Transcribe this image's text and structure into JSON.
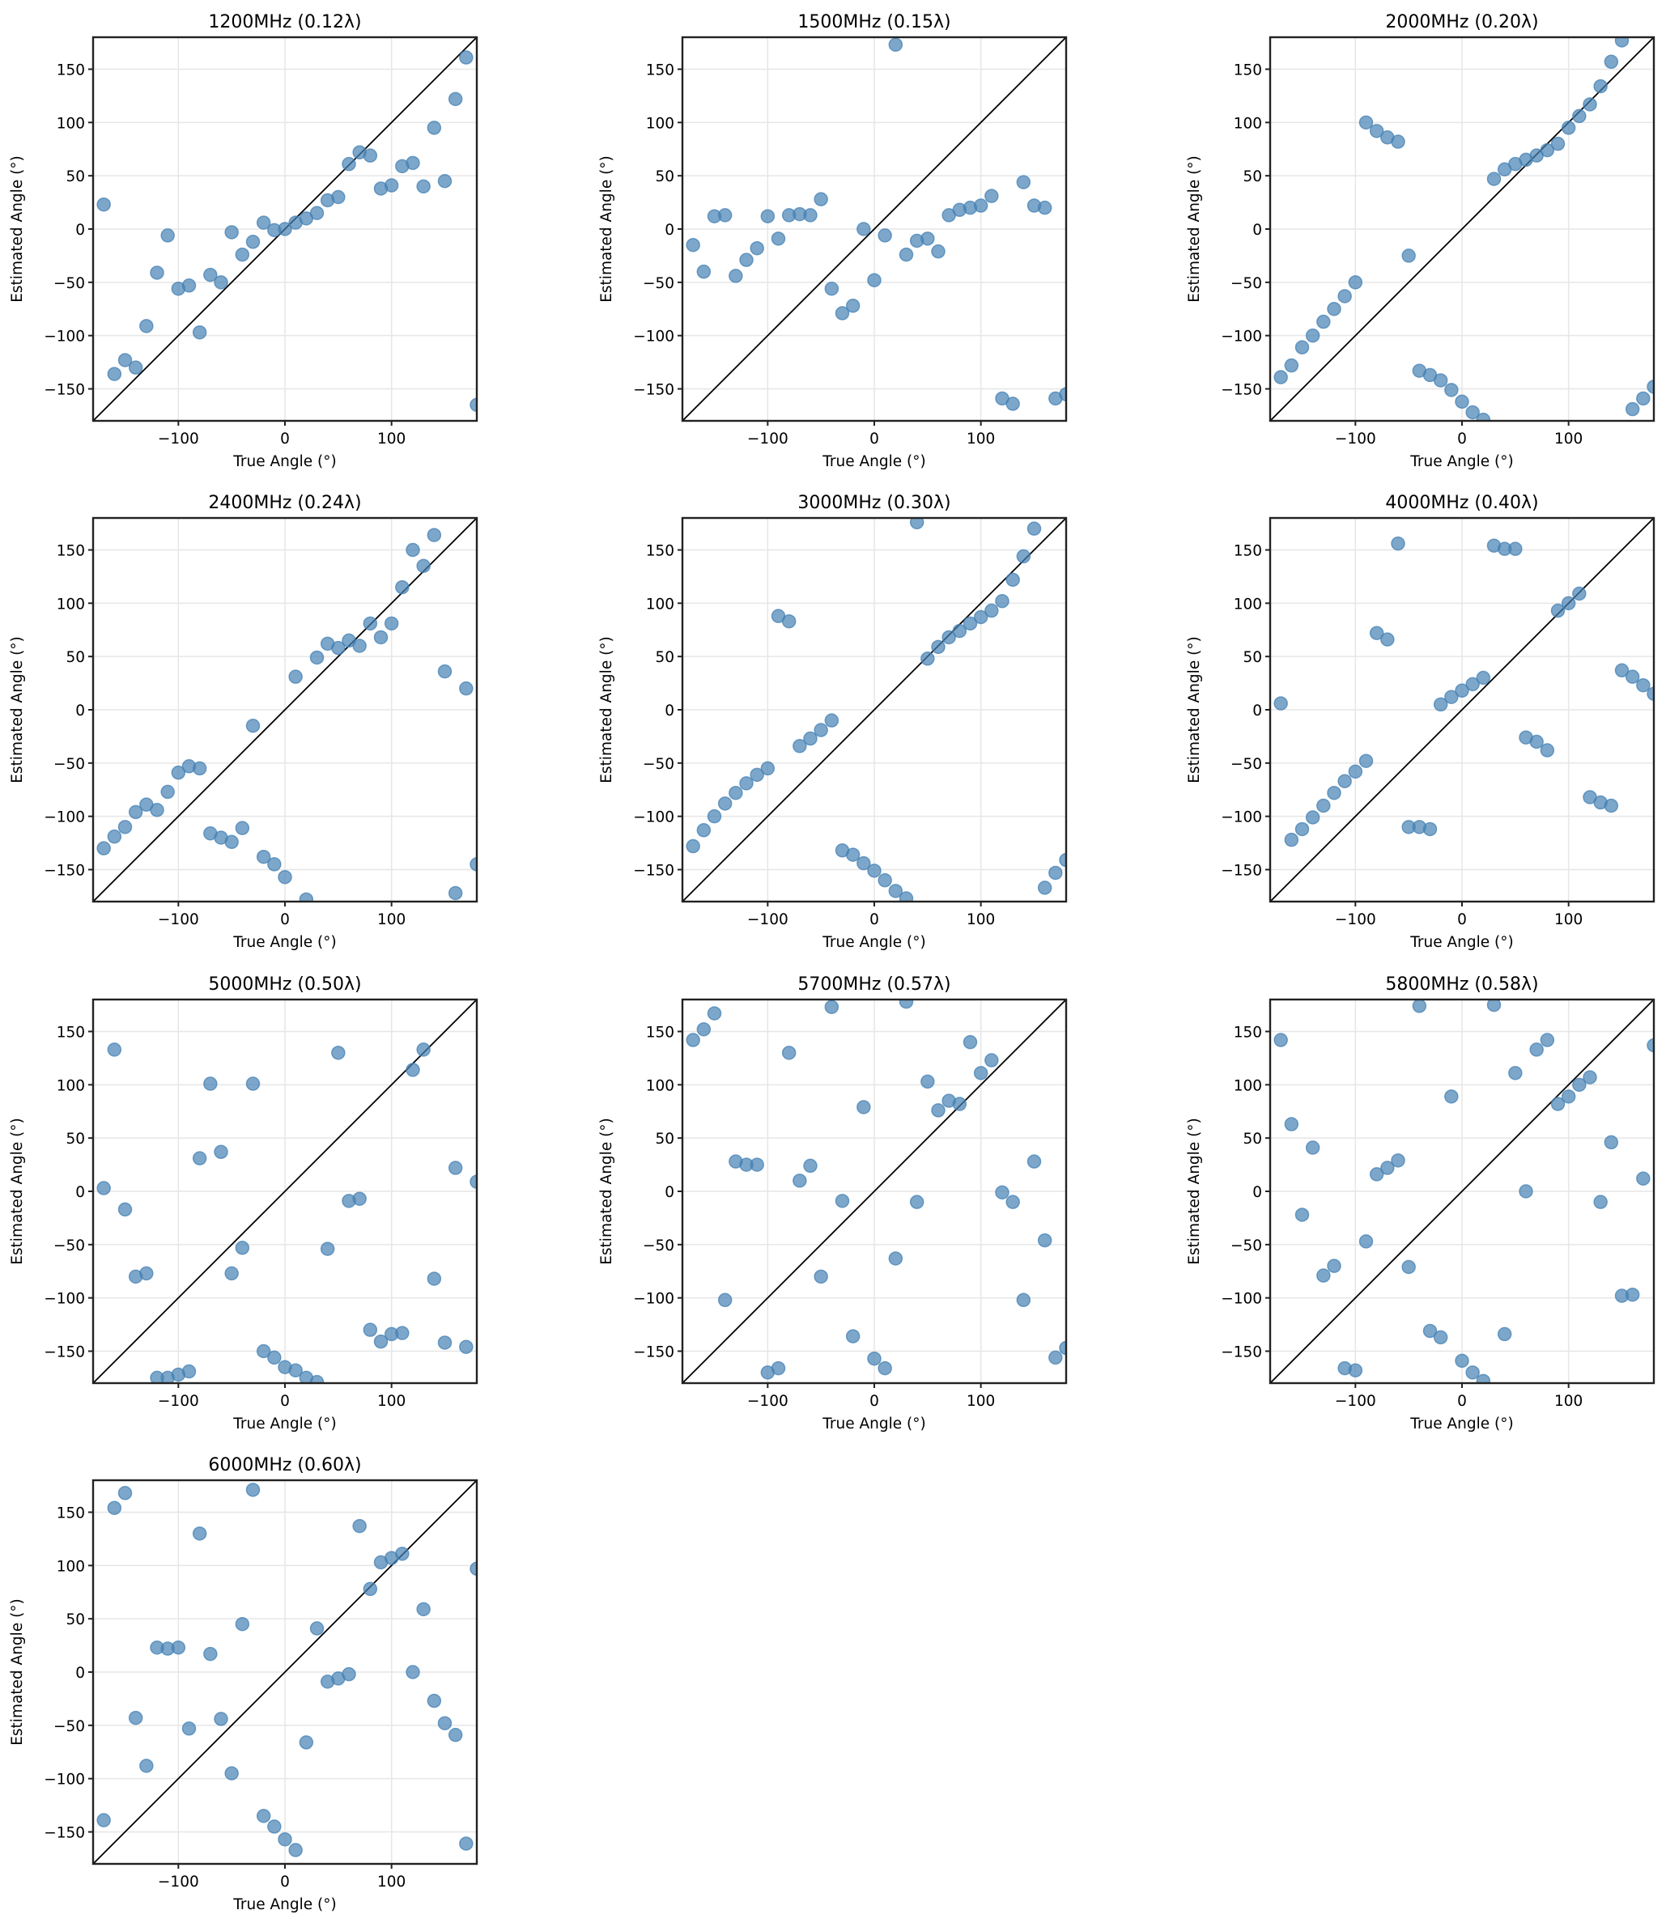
{
  "chart_data": [
    {
      "type": "scatter",
      "title": "1200MHz (0.12λ)",
      "xlabel": "True Angle (°)",
      "ylabel": "Estimated Angle (°)",
      "xlim": [
        -180,
        180
      ],
      "ylim": [
        -180,
        180
      ],
      "xticks": [
        -100,
        0,
        100
      ],
      "yticks": [
        -150,
        -100,
        -50,
        0,
        50,
        100,
        150
      ],
      "grid": true,
      "reference_line": "y = x",
      "x": [
        -170,
        -160,
        -150,
        -140,
        -130,
        -120,
        -110,
        -100,
        -90,
        -80,
        -70,
        -60,
        -50,
        -40,
        -30,
        -20,
        -10,
        0,
        10,
        20,
        30,
        40,
        50,
        60,
        70,
        80,
        90,
        100,
        110,
        120,
        130,
        140,
        150,
        160,
        170,
        180
      ],
      "y": [
        23,
        -136,
        -123,
        -130,
        -91,
        -41,
        -6,
        -56,
        -53,
        -97,
        -43,
        -50,
        -3,
        -24,
        -12,
        6,
        -1,
        0,
        6,
        10,
        15,
        27,
        30,
        61,
        72,
        69,
        38,
        41,
        59,
        62,
        40,
        95,
        45,
        122,
        161,
        -165
      ]
    },
    {
      "type": "scatter",
      "title": "1500MHz (0.15λ)",
      "xlabel": "True Angle (°)",
      "ylabel": "Estimated Angle (°)",
      "xlim": [
        -180,
        180
      ],
      "ylim": [
        -180,
        180
      ],
      "xticks": [
        -100,
        0,
        100
      ],
      "yticks": [
        -150,
        -100,
        -50,
        0,
        50,
        100,
        150
      ],
      "grid": true,
      "reference_line": "y = x",
      "x": [
        -170,
        -160,
        -150,
        -140,
        -130,
        -120,
        -110,
        -100,
        -90,
        -80,
        -70,
        -60,
        -50,
        -40,
        -30,
        -20,
        -10,
        0,
        10,
        20,
        30,
        40,
        50,
        60,
        70,
        80,
        90,
        100,
        110,
        120,
        130,
        140,
        150,
        160,
        170,
        180
      ],
      "y": [
        -15,
        -40,
        12,
        13,
        -44,
        -29,
        -18,
        12,
        -9,
        13,
        14,
        13,
        28,
        -56,
        -79,
        -72,
        0,
        -48,
        -6,
        173,
        -24,
        -11,
        -9,
        -21,
        13,
        18,
        20,
        22,
        31,
        -159,
        -164,
        44,
        22,
        20,
        -159,
        -155
      ]
    },
    {
      "type": "scatter",
      "title": "2000MHz (0.20λ)",
      "xlabel": "True Angle (°)",
      "ylabel": "Estimated Angle (°)",
      "xlim": [
        -180,
        180
      ],
      "ylim": [
        -180,
        180
      ],
      "xticks": [
        -100,
        0,
        100
      ],
      "yticks": [
        -150,
        -100,
        -50,
        0,
        50,
        100,
        150
      ],
      "grid": true,
      "reference_line": "y = x",
      "x": [
        -170,
        -160,
        -150,
        -140,
        -130,
        -120,
        -110,
        -100,
        -90,
        -80,
        -70,
        -60,
        -50,
        -40,
        -30,
        -20,
        -10,
        0,
        10,
        20,
        30,
        40,
        50,
        60,
        70,
        80,
        90,
        100,
        110,
        120,
        130,
        140,
        150,
        160,
        170,
        180
      ],
      "y": [
        -139,
        -128,
        -111,
        -100,
        -87,
        -75,
        -63,
        -50,
        100,
        92,
        86,
        82,
        -25,
        -133,
        -137,
        -142,
        -151,
        -162,
        -172,
        -179,
        47,
        56,
        61,
        65,
        69,
        74,
        80,
        95,
        106,
        117,
        134,
        157,
        177,
        -169,
        -159,
        -148
      ]
    },
    {
      "type": "scatter",
      "title": "2400MHz (0.24λ)",
      "xlabel": "True Angle (°)",
      "ylabel": "Estimated Angle (°)",
      "xlim": [
        -180,
        180
      ],
      "ylim": [
        -180,
        180
      ],
      "xticks": [
        -100,
        0,
        100
      ],
      "yticks": [
        -150,
        -100,
        -50,
        0,
        50,
        100,
        150
      ],
      "grid": true,
      "reference_line": "y = x",
      "x": [
        -170,
        -160,
        -150,
        -140,
        -130,
        -120,
        -110,
        -100,
        -90,
        -80,
        -70,
        -60,
        -50,
        -40,
        -30,
        -20,
        -10,
        0,
        10,
        20,
        30,
        40,
        50,
        60,
        70,
        80,
        90,
        100,
        110,
        120,
        130,
        140,
        150,
        160,
        170,
        180
      ],
      "y": [
        -130,
        -119,
        -110,
        -96,
        -89,
        -94,
        -77,
        -59,
        -53,
        -55,
        -116,
        -120,
        -124,
        -111,
        -15,
        -138,
        -145,
        -157,
        31,
        -178,
        49,
        62,
        58,
        65,
        60,
        81,
        68,
        81,
        115,
        150,
        135,
        164,
        36,
        -172,
        20,
        -145
      ]
    },
    {
      "type": "scatter",
      "title": "3000MHz (0.30λ)",
      "xlabel": "True Angle (°)",
      "ylabel": "Estimated Angle (°)",
      "xlim": [
        -180,
        180
      ],
      "ylim": [
        -180,
        180
      ],
      "xticks": [
        -100,
        0,
        100
      ],
      "yticks": [
        -150,
        -100,
        -50,
        0,
        50,
        100,
        150
      ],
      "grid": true,
      "reference_line": "y = x",
      "x": [
        -170,
        -160,
        -150,
        -140,
        -130,
        -120,
        -110,
        -100,
        -90,
        -80,
        -70,
        -60,
        -50,
        -40,
        -30,
        -20,
        -10,
        0,
        10,
        20,
        30,
        40,
        50,
        60,
        70,
        80,
        90,
        100,
        110,
        120,
        130,
        140,
        150,
        160,
        170,
        180
      ],
      "y": [
        -128,
        -113,
        -100,
        -88,
        -78,
        -69,
        -61,
        -55,
        88,
        83,
        -34,
        -27,
        -19,
        -10,
        -132,
        -136,
        -144,
        -151,
        -160,
        -170,
        -177,
        176,
        48,
        59,
        68,
        74,
        81,
        87,
        93,
        102,
        122,
        144,
        170,
        -167,
        -153,
        -141
      ]
    },
    {
      "type": "scatter",
      "title": "4000MHz (0.40λ)",
      "xlabel": "True Angle (°)",
      "ylabel": "Estimated Angle (°)",
      "xlim": [
        -180,
        180
      ],
      "ylim": [
        -180,
        180
      ],
      "xticks": [
        -100,
        0,
        100
      ],
      "yticks": [
        -150,
        -100,
        -50,
        0,
        50,
        100,
        150
      ],
      "grid": true,
      "reference_line": "y = x",
      "x": [
        -170,
        -160,
        -150,
        -140,
        -130,
        -120,
        -110,
        -100,
        -90,
        -80,
        -70,
        -60,
        -50,
        -40,
        -30,
        -20,
        -10,
        0,
        10,
        20,
        30,
        40,
        50,
        60,
        70,
        80,
        90,
        100,
        110,
        120,
        130,
        140,
        150,
        160,
        170,
        180
      ],
      "y": [
        6,
        -122,
        -112,
        -101,
        -90,
        -78,
        -67,
        -58,
        -48,
        72,
        66,
        156,
        -110,
        -110,
        -112,
        5,
        12,
        18,
        24,
        30,
        154,
        151,
        151,
        -26,
        -30,
        -38,
        93,
        100,
        109,
        -82,
        -87,
        -90,
        37,
        31,
        23,
        15
      ]
    },
    {
      "type": "scatter",
      "title": "5000MHz (0.50λ)",
      "xlabel": "True Angle (°)",
      "ylabel": "Estimated Angle (°)",
      "xlim": [
        -180,
        180
      ],
      "ylim": [
        -180,
        180
      ],
      "xticks": [
        -100,
        0,
        100
      ],
      "yticks": [
        -150,
        -100,
        -50,
        0,
        50,
        100,
        150
      ],
      "grid": true,
      "reference_line": "y = x",
      "x": [
        -170,
        -160,
        -150,
        -140,
        -130,
        -120,
        -110,
        -100,
        -90,
        -80,
        -70,
        -60,
        -50,
        -40,
        -30,
        -20,
        -10,
        0,
        10,
        20,
        30,
        40,
        50,
        60,
        70,
        80,
        90,
        100,
        110,
        120,
        130,
        140,
        150,
        160,
        170,
        180
      ],
      "y": [
        3,
        133,
        -17,
        -80,
        -77,
        -175,
        -175,
        -172,
        -169,
        31,
        101,
        37,
        -77,
        -53,
        101,
        -150,
        -156,
        -165,
        -168,
        -175,
        -179,
        -54,
        130,
        -9,
        -7,
        -130,
        -141,
        -134,
        -133,
        114,
        133,
        -82,
        -142,
        22,
        -146,
        9
      ]
    },
    {
      "type": "scatter",
      "title": "5700MHz (0.57λ)",
      "xlabel": "True Angle (°)",
      "ylabel": "Estimated Angle (°)",
      "xlim": [
        -180,
        180
      ],
      "ylim": [
        -180,
        180
      ],
      "xticks": [
        -100,
        0,
        100
      ],
      "yticks": [
        -150,
        -100,
        -50,
        0,
        50,
        100,
        150
      ],
      "grid": true,
      "reference_line": "y = x",
      "x": [
        -170,
        -160,
        -150,
        -140,
        -130,
        -120,
        -110,
        -100,
        -90,
        -80,
        -70,
        -60,
        -50,
        -40,
        -30,
        -20,
        -10,
        0,
        10,
        20,
        30,
        40,
        50,
        60,
        70,
        80,
        90,
        100,
        110,
        120,
        130,
        140,
        150,
        160,
        170,
        180
      ],
      "y": [
        142,
        152,
        167,
        -102,
        28,
        25,
        25,
        -170,
        -166,
        130,
        10,
        24,
        -80,
        173,
        -9,
        -136,
        79,
        -157,
        -166,
        -63,
        178,
        -10,
        103,
        76,
        85,
        82,
        140,
        111,
        123,
        -1,
        -10,
        -102,
        28,
        -46,
        -156,
        -147
      ]
    },
    {
      "type": "scatter",
      "title": "5800MHz (0.58λ)",
      "xlabel": "True Angle (°)",
      "ylabel": "Estimated Angle (°)",
      "xlim": [
        -180,
        180
      ],
      "ylim": [
        -180,
        180
      ],
      "xticks": [
        -100,
        0,
        100
      ],
      "yticks": [
        -150,
        -100,
        -50,
        0,
        50,
        100,
        150
      ],
      "grid": true,
      "reference_line": "y = x",
      "x": [
        -170,
        -160,
        -150,
        -140,
        -130,
        -120,
        -110,
        -100,
        -90,
        -80,
        -70,
        -60,
        -50,
        -40,
        -30,
        -20,
        -10,
        0,
        10,
        20,
        30,
        40,
        50,
        60,
        70,
        80,
        90,
        100,
        110,
        120,
        130,
        140,
        150,
        160,
        170,
        180
      ],
      "y": [
        142,
        63,
        -22,
        41,
        -79,
        -70,
        -166,
        -168,
        -47,
        16,
        22,
        29,
        -71,
        174,
        -131,
        -137,
        89,
        -159,
        -170,
        -178,
        175,
        -134,
        111,
        0,
        133,
        142,
        82,
        89,
        100,
        107,
        -10,
        46,
        -98,
        -97,
        12,
        137
      ]
    },
    {
      "type": "scatter",
      "title": "6000MHz (0.60λ)",
      "xlabel": "True Angle (°)",
      "ylabel": "Estimated Angle (°)",
      "xlim": [
        -180,
        180
      ],
      "ylim": [
        -180,
        180
      ],
      "xticks": [
        -100,
        0,
        100
      ],
      "yticks": [
        -150,
        -100,
        -50,
        0,
        50,
        100,
        150
      ],
      "grid": true,
      "reference_line": "y = x",
      "x": [
        -170,
        -160,
        -150,
        -140,
        -130,
        -120,
        -110,
        -100,
        -90,
        -80,
        -70,
        -60,
        -50,
        -40,
        -30,
        -20,
        -10,
        0,
        10,
        20,
        30,
        40,
        50,
        60,
        70,
        80,
        90,
        100,
        110,
        120,
        130,
        140,
        150,
        160,
        170,
        180
      ],
      "y": [
        -139,
        154,
        168,
        -43,
        -88,
        23,
        22,
        23,
        -53,
        130,
        17,
        -44,
        -95,
        45,
        171,
        -135,
        -145,
        -157,
        -167,
        -66,
        41,
        -9,
        -6,
        -2,
        137,
        78,
        103,
        107,
        111,
        0,
        59,
        -27,
        -48,
        -59,
        -161,
        97
      ]
    }
  ],
  "tick_format": {
    "minus_sign": "−"
  },
  "colors": {
    "marker": "#4682b4",
    "reference_line": "#000000",
    "grid": "#e6e6e6"
  }
}
